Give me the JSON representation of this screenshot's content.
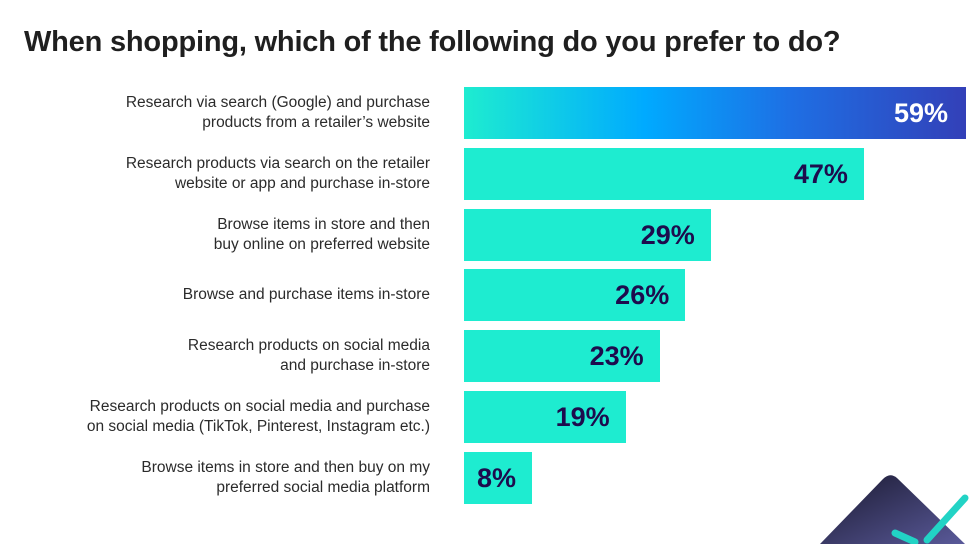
{
  "chart_data": {
    "type": "bar",
    "orientation": "horizontal",
    "title": "When shopping, which of the following do you prefer to do?",
    "categories": [
      "Research via search (Google) and purchase\nproducts from a retailer’s website",
      "Research products via search on the retailer\nwebsite or app and purchase in-store",
      "Browse items in store and then\nbuy online on preferred website",
      "Browse and purchase items in-store",
      "Research products on social media\nand purchase in-store",
      "Research products on social media and purchase\non social media (TikTok, Pinterest, Instagram etc.)",
      "Browse items in store and then buy on my\npreferred social media platform"
    ],
    "values": [
      59,
      47,
      29,
      26,
      23,
      19,
      8
    ],
    "value_labels": [
      "59%",
      "47%",
      "29%",
      "26%",
      "23%",
      "19%",
      "8%"
    ],
    "xlim": [
      0,
      59
    ],
    "grid": false,
    "colors": {
      "bar": "#1eecd0",
      "highlight_gradient": [
        "#1eecd0",
        "#00aaff",
        "#3340b8"
      ],
      "value_text": "#1d0c4d",
      "highlight_value_text": "#ffffff"
    }
  }
}
